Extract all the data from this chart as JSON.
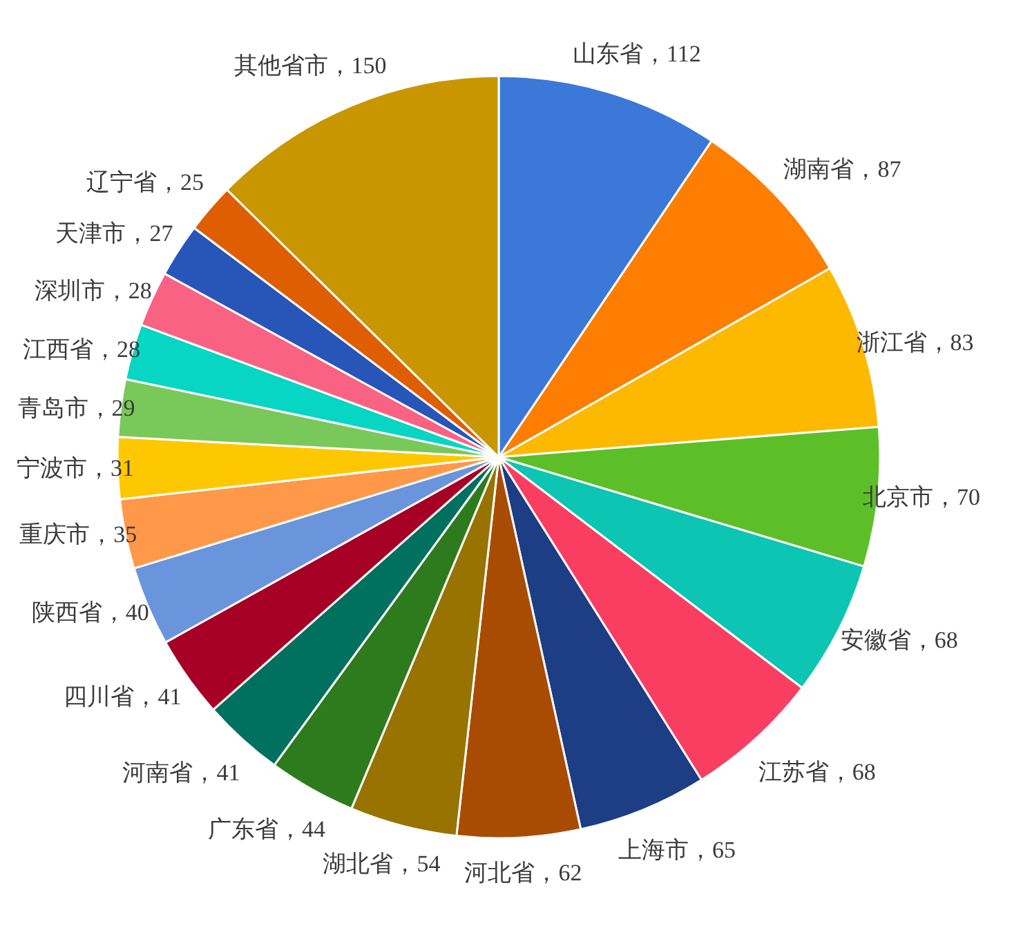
{
  "chart_data": {
    "type": "pie",
    "categories": [
      "山东省",
      "湖南省",
      "浙江省",
      "北京市",
      "安徽省",
      "江苏省",
      "上海市",
      "河北省",
      "湖北省",
      "广东省",
      "河南省",
      "四川省",
      "陕西省",
      "重庆市",
      "宁波市",
      "青岛市",
      "江西省",
      "深圳市",
      "天津市",
      "辽宁省",
      "其他省市"
    ],
    "values": [
      112,
      87,
      83,
      70,
      68,
      68,
      65,
      62,
      54,
      44,
      41,
      41,
      40,
      35,
      31,
      29,
      28,
      28,
      27,
      25,
      150
    ],
    "value_labels": [
      "，112",
      "，87",
      "，83",
      "，70",
      "，68",
      "，68",
      "，65",
      "，62",
      "，54",
      "，44",
      "，41",
      "，41",
      "，40",
      "，35",
      "，31",
      "，29",
      "，28",
      "，28",
      "，27",
      "，25",
      "，150"
    ],
    "colors": [
      "#3c78d8",
      "#fd7e00",
      "#fdb900",
      "#5cbf28",
      "#0cc5b3",
      "#fa3e62",
      "#1d3e84",
      "#a94c03",
      "#987300",
      "#2e7b1e",
      "#00705f",
      "#a60026",
      "#6a95dc",
      "#ff9848",
      "#fec800",
      "#79c95a",
      "#06d6c3",
      "#f96283",
      "#2856b8",
      "#df5e02",
      "#c99600"
    ]
  }
}
